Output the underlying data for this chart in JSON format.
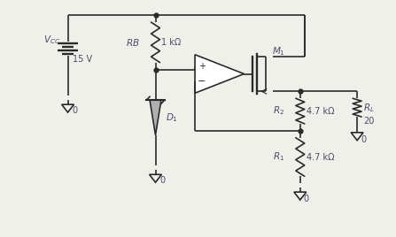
{
  "bg_color": "#f0f0eb",
  "line_color": "#2a2a2a",
  "text_color": "#4a4a6a",
  "fill_color": "#b0b0b0",
  "components": {
    "vcc_label": "V_{CC}",
    "vcc_value": "15 V",
    "rb_label": "RB",
    "rb_value": "1 kΩ",
    "d1_label": "D_1",
    "m1_label": "M_1",
    "r1_label": "R_1",
    "r1_value": "4.7 kΩ",
    "r2_label": "R_2",
    "r2_value": "4.7 kΩ",
    "rl_label": "R_L",
    "rl_value": "20",
    "opamp_plus": "+",
    "opamp_minus": "−"
  }
}
